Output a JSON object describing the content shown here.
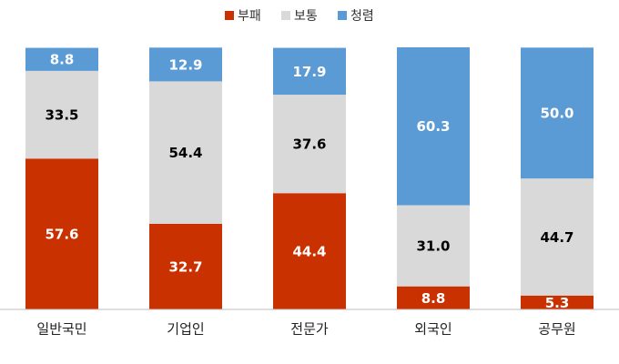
{
  "chart_data": {
    "type": "stacked_bar",
    "categories": [
      "일반국민",
      "기업인",
      "전문가",
      "외국인",
      "공무원"
    ],
    "series": [
      {
        "name": "부패",
        "color": "#c93200",
        "label_color": "#ffffff",
        "values": [
          57.6,
          32.7,
          44.4,
          8.8,
          5.3
        ],
        "value_labels": [
          "57.6",
          "32.7",
          "44.4",
          "8.8",
          "5.3"
        ]
      },
      {
        "name": "보통",
        "color": "#d9d9d9",
        "label_color": "#000000",
        "values": [
          33.5,
          54.4,
          37.6,
          31.0,
          44.7
        ],
        "value_labels": [
          "33.5",
          "54.4",
          "37.6",
          "31.0",
          "44.7"
        ]
      },
      {
        "name": "청렴",
        "color": "#5b9bd5",
        "label_color": "#ffffff",
        "values": [
          8.8,
          12.9,
          17.9,
          60.3,
          50.0
        ],
        "value_labels": [
          "8.8",
          "12.9",
          "17.9",
          "60.3",
          "50.0"
        ]
      }
    ],
    "legend": "top"
  }
}
